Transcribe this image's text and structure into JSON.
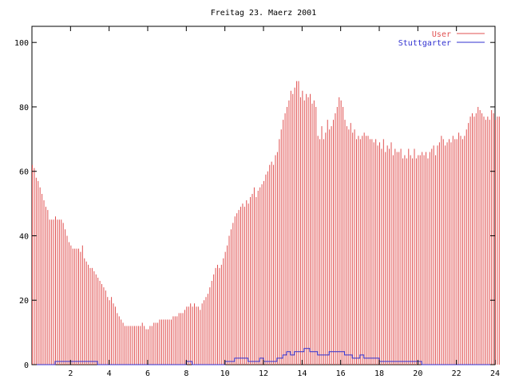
{
  "chart_data": {
    "type": "bar",
    "title": "Freitag 23. Maerz 2001",
    "xlabel": "",
    "ylabel": "",
    "xlim": [
      0,
      24
    ],
    "ylim": [
      0,
      105
    ],
    "x_ticks": [
      2,
      4,
      6,
      8,
      10,
      12,
      14,
      16,
      18,
      20,
      22,
      24
    ],
    "y_ticks": [
      0,
      20,
      40,
      60,
      80,
      100
    ],
    "legend_position": "top-right",
    "grid": false,
    "x_start": 0,
    "x_step": 0.1,
    "series": [
      {
        "name": "User",
        "style": "impulses",
        "color": "#e05050",
        "values": [
          62,
          61,
          58,
          57,
          55,
          53,
          51,
          49,
          48,
          45,
          45,
          45,
          46,
          45,
          45,
          45,
          44,
          42,
          40,
          38,
          37,
          36,
          36,
          36,
          36,
          35,
          37,
          33,
          32,
          31,
          30,
          30,
          29,
          28,
          27,
          26,
          25,
          24,
          23,
          21,
          20,
          21,
          19,
          18,
          16,
          15,
          14,
          13,
          12,
          12,
          12,
          12,
          12,
          12,
          12,
          12,
          12,
          13,
          12,
          11,
          11,
          12,
          12,
          13,
          13,
          13,
          14,
          14,
          14,
          14,
          14,
          14,
          14,
          15,
          15,
          15,
          16,
          16,
          16,
          17,
          18,
          18,
          19,
          18,
          19,
          18,
          18,
          17,
          19,
          20,
          21,
          22,
          24,
          26,
          28,
          30,
          31,
          30,
          31,
          33,
          35,
          37,
          40,
          42,
          44,
          46,
          47,
          48,
          49,
          50,
          49,
          51,
          50,
          52,
          53,
          55,
          52,
          54,
          55,
          56,
          57,
          59,
          60,
          62,
          63,
          62,
          65,
          66,
          70,
          73,
          76,
          78,
          80,
          82,
          85,
          84,
          86,
          88,
          88,
          83,
          85,
          82,
          84,
          83,
          84,
          81,
          82,
          80,
          71,
          70,
          74,
          70,
          72,
          76,
          73,
          74,
          76,
          78,
          80,
          83,
          82,
          80,
          76,
          74,
          73,
          75,
          72,
          73,
          70,
          71,
          70,
          71,
          72,
          71,
          71,
          70,
          70,
          69,
          70,
          68,
          69,
          67,
          70,
          66,
          68,
          67,
          69,
          65,
          67,
          66,
          66,
          67,
          64,
          65,
          64,
          67,
          65,
          64,
          67,
          64,
          65,
          65,
          66,
          65,
          66,
          64,
          66,
          67,
          68,
          65,
          68,
          69,
          71,
          70,
          68,
          69,
          70,
          69,
          71,
          70,
          70,
          72,
          71,
          70,
          71,
          73,
          75,
          77,
          78,
          77,
          78,
          80,
          79,
          78,
          77,
          76,
          77,
          76,
          79,
          78,
          76,
          77,
          77
        ]
      },
      {
        "name": "Stuttgarter",
        "style": "steps",
        "color": "#3030d0",
        "points": [
          [
            0,
            0
          ],
          [
            1.2,
            0
          ],
          [
            1.2,
            1
          ],
          [
            3.4,
            1
          ],
          [
            3.4,
            0
          ],
          [
            8.0,
            0
          ],
          [
            8.0,
            1
          ],
          [
            8.3,
            1
          ],
          [
            8.3,
            0
          ],
          [
            10.0,
            0
          ],
          [
            10.0,
            1
          ],
          [
            10.5,
            1
          ],
          [
            10.5,
            2
          ],
          [
            11.2,
            2
          ],
          [
            11.2,
            1
          ],
          [
            11.8,
            1
          ],
          [
            11.8,
            2
          ],
          [
            12.0,
            2
          ],
          [
            12.0,
            1
          ],
          [
            12.7,
            1
          ],
          [
            12.7,
            2
          ],
          [
            13.0,
            2
          ],
          [
            13.0,
            3
          ],
          [
            13.2,
            3
          ],
          [
            13.2,
            4
          ],
          [
            13.4,
            4
          ],
          [
            13.4,
            3
          ],
          [
            13.6,
            3
          ],
          [
            13.6,
            4
          ],
          [
            14.1,
            4
          ],
          [
            14.1,
            5
          ],
          [
            14.4,
            5
          ],
          [
            14.4,
            4
          ],
          [
            14.8,
            4
          ],
          [
            14.8,
            3
          ],
          [
            15.4,
            3
          ],
          [
            15.4,
            4
          ],
          [
            16.2,
            4
          ],
          [
            16.2,
            3
          ],
          [
            16.6,
            3
          ],
          [
            16.6,
            2
          ],
          [
            17.0,
            2
          ],
          [
            17.0,
            3
          ],
          [
            17.2,
            3
          ],
          [
            17.2,
            2
          ],
          [
            18.0,
            2
          ],
          [
            18.0,
            1
          ],
          [
            20.2,
            1
          ],
          [
            20.2,
            0
          ],
          [
            24.0,
            0
          ]
        ]
      }
    ]
  }
}
